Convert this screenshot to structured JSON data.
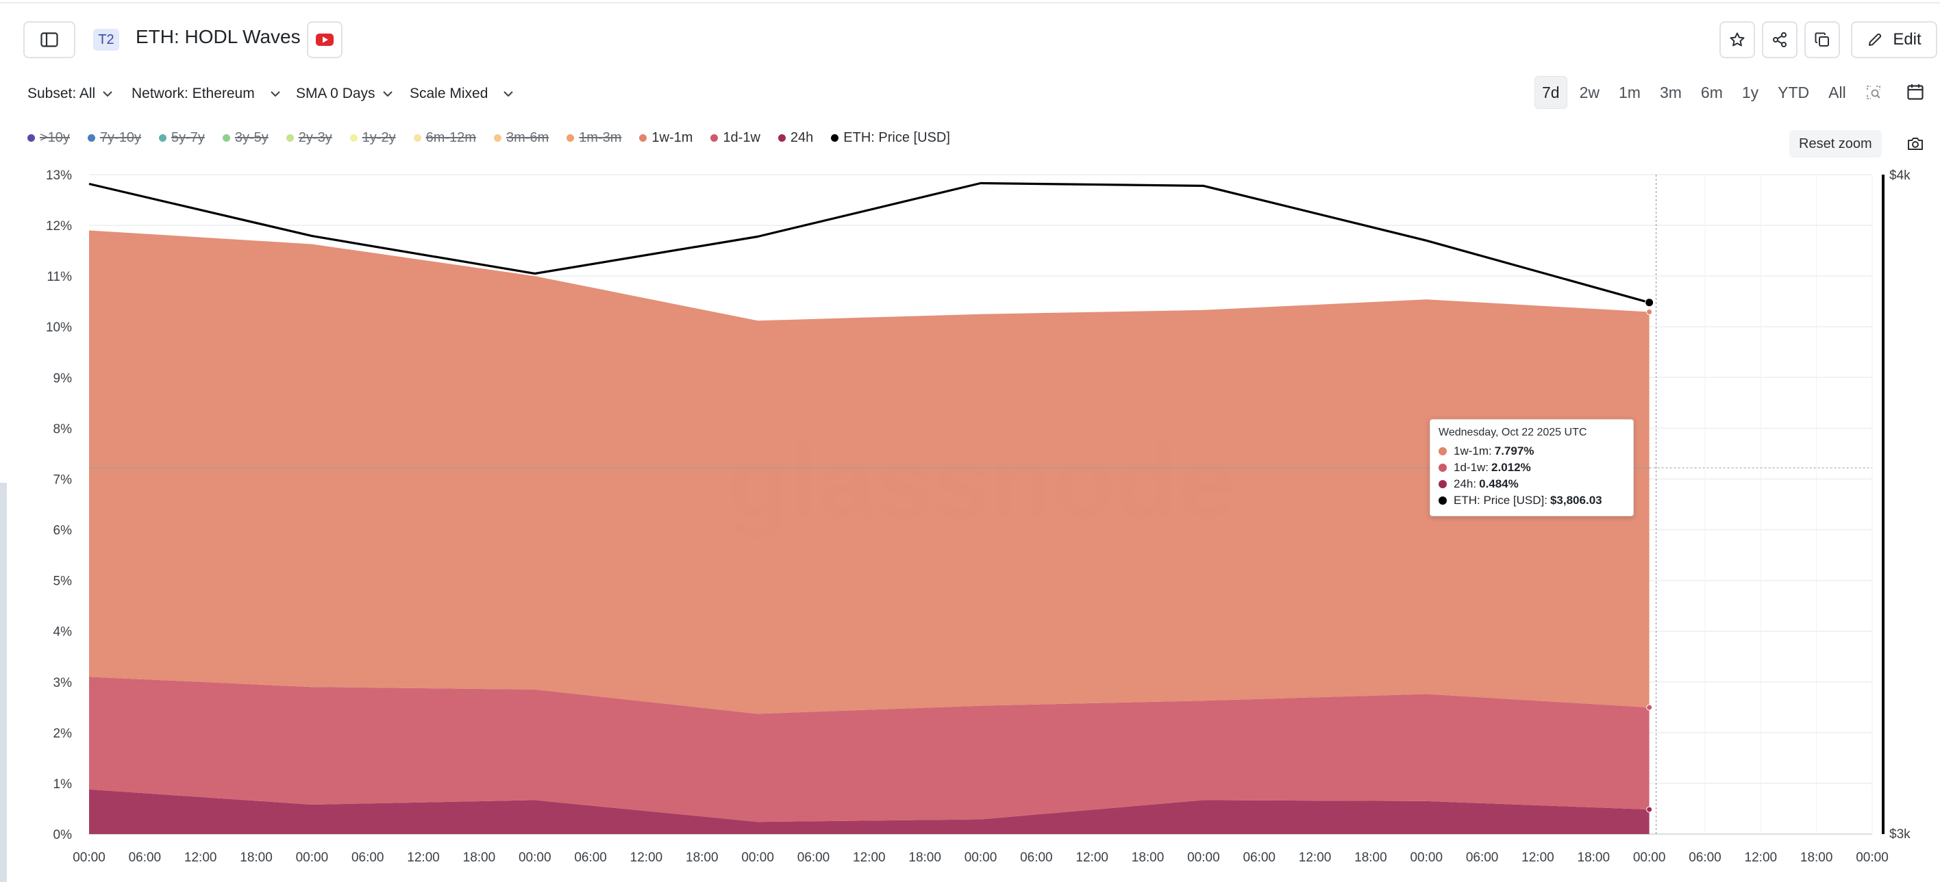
{
  "header": {
    "badge": "T2",
    "title": "ETH: HODL Waves",
    "edit_label": "Edit"
  },
  "filters": {
    "subset": "Subset: All",
    "network": "Network: Ethereum",
    "sma": "SMA 0 Days",
    "scale": "Scale Mixed"
  },
  "ranges": {
    "items": [
      "7d",
      "2w",
      "1m",
      "3m",
      "6m",
      "1y",
      "YTD",
      "All"
    ],
    "active": "7d"
  },
  "legend": [
    {
      "label": ">10y",
      "color": "#5a4aa8",
      "visible": false
    },
    {
      "label": "7y-10y",
      "color": "#4a7fc1",
      "visible": false
    },
    {
      "label": "5y-7y",
      "color": "#5fb3ad",
      "visible": false
    },
    {
      "label": "3y-5y",
      "color": "#8fcf8f",
      "visible": false
    },
    {
      "label": "2y-3y",
      "color": "#c6e48b",
      "visible": false
    },
    {
      "label": "1y-2y",
      "color": "#f2f2a0",
      "visible": false
    },
    {
      "label": "6m-12m",
      "color": "#f7e4a0",
      "visible": false
    },
    {
      "label": "3m-6m",
      "color": "#f6c88a",
      "visible": false
    },
    {
      "label": "1m-3m",
      "color": "#f2a06e",
      "visible": false
    },
    {
      "label": "1w-1m",
      "color": "#e2856c",
      "visible": true
    },
    {
      "label": "1d-1w",
      "color": "#cd5a68",
      "visible": true
    },
    {
      "label": "24h",
      "color": "#9e2a55",
      "visible": true
    },
    {
      "label": "ETH: Price [USD]",
      "color": "#000000",
      "visible": true
    }
  ],
  "reset_zoom_label": "Reset zoom",
  "watermark": "glassnode",
  "tooltip": {
    "date": "Wednesday, Oct 22 2025 UTC",
    "rows": [
      {
        "label": "1w-1m:",
        "value": "7.797%",
        "color": "#e2856c"
      },
      {
        "label": "1d-1w:",
        "value": "2.012%",
        "color": "#cd5a68"
      },
      {
        "label": "24h:",
        "value": "0.484%",
        "color": "#9e2a55"
      },
      {
        "label": "ETH: Price [USD]:",
        "value": "$3,806.03",
        "color": "#000000"
      }
    ]
  },
  "chart_data": {
    "type": "area",
    "stacked": true,
    "x_tick_labels": [
      "00:00",
      "06:00",
      "12:00",
      "18:00",
      "00:00",
      "06:00",
      "12:00",
      "18:00",
      "00:00",
      "06:00",
      "12:00",
      "18:00",
      "00:00",
      "06:00",
      "12:00",
      "18:00",
      "00:00",
      "06:00",
      "12:00",
      "18:00",
      "00:00",
      "06:00",
      "12:00",
      "18:00",
      "00:00",
      "06:00",
      "12:00",
      "18:00",
      "00:00",
      "06:00",
      "12:00",
      "18:00",
      "00:00"
    ],
    "x_days": [
      0,
      1,
      2,
      3,
      4,
      5,
      6,
      7
    ],
    "xlim": [
      0,
      8
    ],
    "y_left_ticks": [
      "0%",
      "1%",
      "2%",
      "3%",
      "4%",
      "5%",
      "6%",
      "7%",
      "8%",
      "9%",
      "10%",
      "11%",
      "12%",
      "13%"
    ],
    "ylim_left": [
      0,
      13
    ],
    "y_right_ticks": [
      "$3k",
      "$4k"
    ],
    "ylim_right": [
      3000,
      4000
    ],
    "series": [
      {
        "name": "24h",
        "values": [
          0.88,
          0.58,
          0.67,
          0.24,
          0.29,
          0.67,
          0.65,
          0.484
        ],
        "color": "#9e2a55"
      },
      {
        "name": "1d-1w",
        "values": [
          2.22,
          2.32,
          2.18,
          2.13,
          2.24,
          1.96,
          2.11,
          2.012
        ],
        "color": "#cd5a68"
      },
      {
        "name": "1w-1m",
        "values": [
          8.8,
          8.73,
          8.15,
          7.75,
          7.72,
          7.7,
          7.78,
          7.797
        ],
        "color": "#e2856c"
      }
    ],
    "price_series": {
      "name": "ETH: Price [USD]",
      "values": [
        3986,
        3907,
        3850,
        3906,
        3987,
        3983,
        3900,
        3806.03
      ],
      "color": "#000000"
    },
    "crosshair_y_percent": 7.22,
    "grid": true,
    "legend_position": "top-left"
  }
}
